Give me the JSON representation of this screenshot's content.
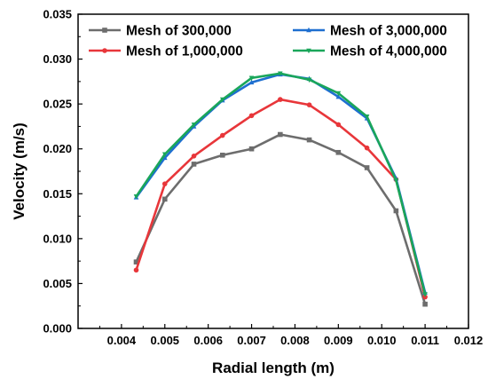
{
  "chart_data": {
    "type": "line",
    "title": "",
    "xlabel": "Radial length (m)",
    "ylabel": "Velocity (m/s)",
    "xlim": [
      0.003,
      0.012
    ],
    "ylim": [
      0.0,
      0.035
    ],
    "xticks": [
      "0.004",
      "0.005",
      "0.006",
      "0.007",
      "0.008",
      "0.009",
      "0.010",
      "0.011",
      "0.012"
    ],
    "yticks": [
      "0.000",
      "0.005",
      "0.010",
      "0.015",
      "0.020",
      "0.025",
      "0.030",
      "0.035"
    ],
    "grid": false,
    "legend_position": "top",
    "x": [
      0.00434,
      0.005,
      0.00567,
      0.00633,
      0.007,
      0.00766,
      0.00833,
      0.009,
      0.00966,
      0.01033,
      0.011
    ],
    "series": [
      {
        "name": "Mesh of 300,000",
        "color": "#6d6d6d",
        "marker": "square",
        "values": [
          0.0074,
          0.0144,
          0.0183,
          0.0193,
          0.02,
          0.0216,
          0.021,
          0.0196,
          0.0179,
          0.0131,
          0.0027
        ]
      },
      {
        "name": "Mesh of 1,000,000",
        "color": "#e8363a",
        "marker": "circle",
        "values": [
          0.0065,
          0.0161,
          0.0192,
          0.0215,
          0.0237,
          0.0255,
          0.0249,
          0.0227,
          0.0201,
          0.0166,
          0.0035
        ]
      },
      {
        "name": "Mesh of 3,000,000",
        "color": "#1e6fd0",
        "marker": "triangle-up",
        "values": [
          0.0146,
          0.019,
          0.0225,
          0.0254,
          0.0274,
          0.0283,
          0.0278,
          0.0258,
          0.0234,
          0.0167,
          0.004
        ]
      },
      {
        "name": "Mesh of 4,000,000",
        "color": "#1aa65a",
        "marker": "triangle-down",
        "values": [
          0.0147,
          0.0194,
          0.0227,
          0.0255,
          0.0279,
          0.0284,
          0.0277,
          0.0262,
          0.0236,
          0.0165,
          0.0038
        ]
      }
    ]
  }
}
